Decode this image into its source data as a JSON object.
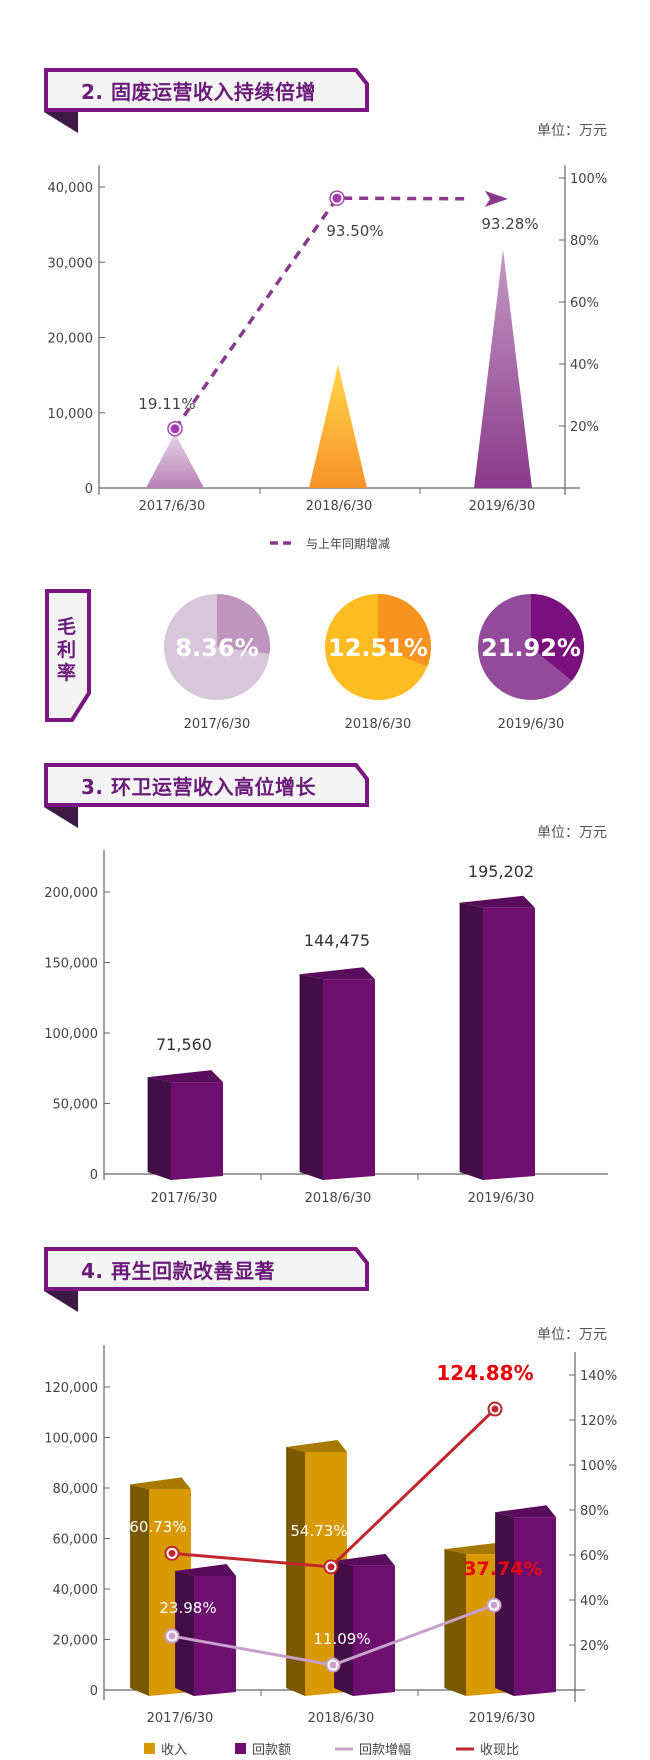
{
  "sections": [
    {
      "title": "2. 固废运营收入持续倍增",
      "unit": "单位：万元"
    },
    {
      "title": "3. 环卫运营收入高位增长",
      "unit": "单位：万元"
    },
    {
      "title": "4. 再生回款改善显著",
      "unit": "单位：万元"
    }
  ],
  "margin_tag": "毛利率",
  "colors": {
    "brand_purple": "#7b1680",
    "gold": "#d89a00",
    "cash_ratio_red": "#c0262d",
    "growth_lilac": "#c9a0c9",
    "highlight_red": "#e8000b"
  },
  "chart_data": [
    {
      "type": "bar",
      "mark": "triangle",
      "categories": [
        "2017/6/30",
        "2018/6/30",
        "2019/6/30"
      ],
      "values": [
        7300,
        16400,
        31700
      ],
      "bar_colors": [
        "#c190c0",
        "#fbb040",
        "#8e3f8f"
      ],
      "yticks": [
        "0",
        "10,000",
        "20,000",
        "30,000",
        "40,000"
      ],
      "ylim": [
        0,
        40000
      ],
      "y2ticks": [
        "20%",
        "40%",
        "60%",
        "80%",
        "100%"
      ],
      "y2lim": [
        0,
        100
      ],
      "line_series": {
        "name": "与上年同期增减",
        "values": [
          19.11,
          93.5,
          93.28
        ],
        "labels": [
          "19.11%",
          "93.50%",
          "93.28%"
        ],
        "style": "dashed-arrow",
        "color": "#8a3a8c"
      },
      "legend": {
        "position": "bottom",
        "items": [
          "与上年同期增减"
        ]
      },
      "grid": false
    },
    {
      "type": "pie",
      "title": "毛利率",
      "categories": [
        "2017/6/30",
        "2018/6/30",
        "2019/6/30"
      ],
      "values": [
        8.36,
        12.51,
        21.92
      ],
      "labels": [
        "8.36%",
        "12.51%",
        "21.92%"
      ],
      "note": "",
      "pie_colors": [
        [
          "#d8c6da",
          "#bf95bd"
        ],
        [
          "#fbbc22",
          "#f7931e"
        ],
        [
          "#934a9a",
          "#7a0f7e"
        ]
      ]
    },
    {
      "type": "bar",
      "mark": "3d-bar",
      "categories": [
        "2017/6/30",
        "2018/6/30",
        "2019/6/30"
      ],
      "values": [
        71560,
        144475,
        195202
      ],
      "labels": [
        "71,560",
        "144,475",
        "195,202"
      ],
      "yticks": [
        "0",
        "50,000",
        "100,000",
        "150,000",
        "200,000"
      ],
      "ylim": [
        0,
        200000
      ],
      "grid": false
    },
    {
      "type": "bar",
      "mark": "3d-bar",
      "categories": [
        "2017/6/30",
        "2018/6/30",
        "2019/6/30"
      ],
      "series": [
        {
          "name": "收入",
          "values": [
            83000,
            97800,
            57400
          ],
          "color": "#d89a00"
        },
        {
          "name": "回款额",
          "values": [
            48700,
            52700,
            72000
          ],
          "color": "#6e0f70"
        }
      ],
      "line_series": [
        {
          "name": "回款增幅",
          "values": [
            23.98,
            11.09,
            37.74
          ],
          "labels": [
            "23.98%",
            "11.09%",
            "37.74%"
          ],
          "color": "#c9a0c9"
        },
        {
          "name": "收现比",
          "values": [
            60.73,
            54.73,
            124.88
          ],
          "labels": [
            "60.73%",
            "54.73%",
            "124.88%"
          ],
          "color": "#c0262d"
        }
      ],
      "yticks": [
        "0",
        "20,000",
        "40,000",
        "60,000",
        "80,000",
        "100,000",
        "120,000"
      ],
      "ylim": [
        0,
        120000
      ],
      "y2ticks": [
        "20%",
        "40%",
        "60%",
        "80%",
        "100%",
        "120%",
        "140%"
      ],
      "y2lim": [
        0,
        140
      ],
      "legend": {
        "position": "bottom",
        "items": [
          "收入",
          "回款额",
          "回款增幅",
          "收现比"
        ]
      },
      "grid": false
    }
  ]
}
